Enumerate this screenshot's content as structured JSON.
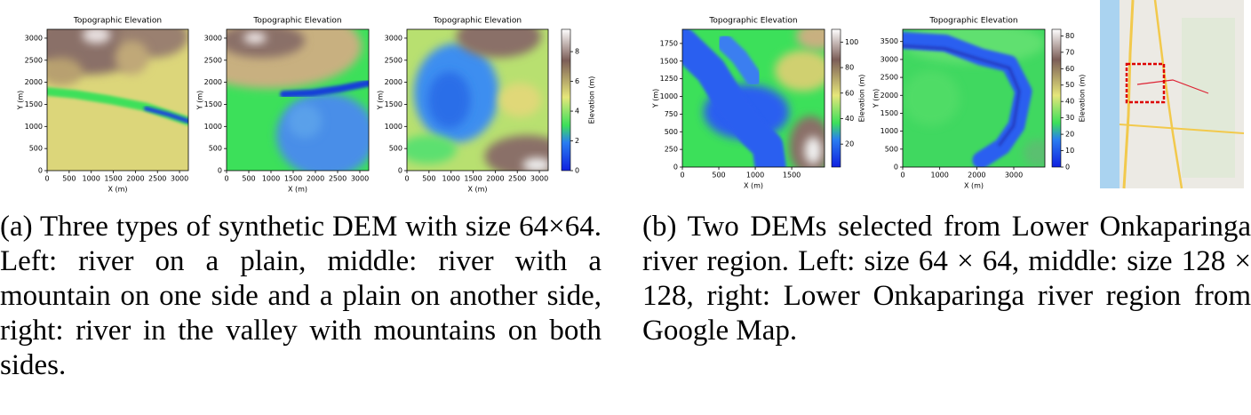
{
  "subfigure_a": {
    "plots": [
      {
        "title": "Topographic Elevation",
        "xlabel": "X (m)",
        "ylabel": "Y (m)",
        "xlim": [
          0,
          3200
        ],
        "ylim": [
          0,
          3200
        ],
        "xticks": [
          0,
          500,
          1000,
          1500,
          2000,
          2500,
          3000
        ],
        "yticks": [
          0,
          500,
          1000,
          1500,
          2000,
          2500,
          3000
        ]
      },
      {
        "title": "Topographic Elevation",
        "xlabel": "X (m)",
        "ylabel": "Y (m)",
        "xlim": [
          0,
          3200
        ],
        "ylim": [
          0,
          3200
        ],
        "xticks": [
          0,
          500,
          1000,
          1500,
          2000,
          2500,
          3000
        ],
        "yticks": [
          0,
          500,
          1000,
          1500,
          2000,
          2500,
          3000
        ]
      },
      {
        "title": "Topographic Elevation",
        "xlabel": "X (m)",
        "ylabel": "Y (m)",
        "xlim": [
          0,
          3200
        ],
        "ylim": [
          0,
          3200
        ],
        "xticks": [
          0,
          500,
          1000,
          1500,
          2000,
          2500,
          3000
        ],
        "yticks": [
          0,
          500,
          1000,
          1500,
          2000,
          2500,
          3000
        ],
        "colorbar": {
          "label": "Elevation (m)",
          "lim": [
            0,
            9.5
          ],
          "ticks": [
            0,
            2,
            4,
            6,
            8
          ]
        }
      }
    ],
    "caption": "(a) Three types of synthetic DEM with size 64×64. Left: river on a plain, middle: river with a mountain on one side and a plain on another side, right: river in the valley with mountains on both sides."
  },
  "subfigure_b": {
    "plots": [
      {
        "title": "Topographic Elevation",
        "xlabel": "X (m)",
        "ylabel": "Y (m)",
        "xlim": [
          0,
          1950
        ],
        "ylim": [
          0,
          1950
        ],
        "xticks": [
          0,
          500,
          1000,
          1500
        ],
        "yticks": [
          0,
          250,
          500,
          750,
          1000,
          1250,
          1500,
          1750
        ],
        "colorbar": {
          "label": "Elevation (m)",
          "lim": [
            2,
            110
          ],
          "ticks": [
            20,
            40,
            60,
            80,
            100
          ]
        }
      },
      {
        "title": "Topographic Elevation",
        "xlabel": "X (m)",
        "ylabel": "Y (m)",
        "xlim": [
          0,
          3840
        ],
        "ylim": [
          0,
          3840
        ],
        "xticks": [
          0,
          1000,
          2000,
          3000
        ],
        "yticks": [
          0,
          500,
          1000,
          1500,
          2000,
          2500,
          3000,
          3500
        ],
        "colorbar": {
          "label": "Elevation (m)",
          "lim": [
            0,
            84
          ],
          "ticks": [
            0,
            10,
            20,
            30,
            40,
            50,
            60,
            70,
            80
          ]
        }
      }
    ],
    "caption": "(b) Two DEMs selected from Lower Onkaparinga river region. Left: size 64 × 64, middle: size 128 × 128, right: Lower Onkaparinga river region from Google Map."
  }
}
